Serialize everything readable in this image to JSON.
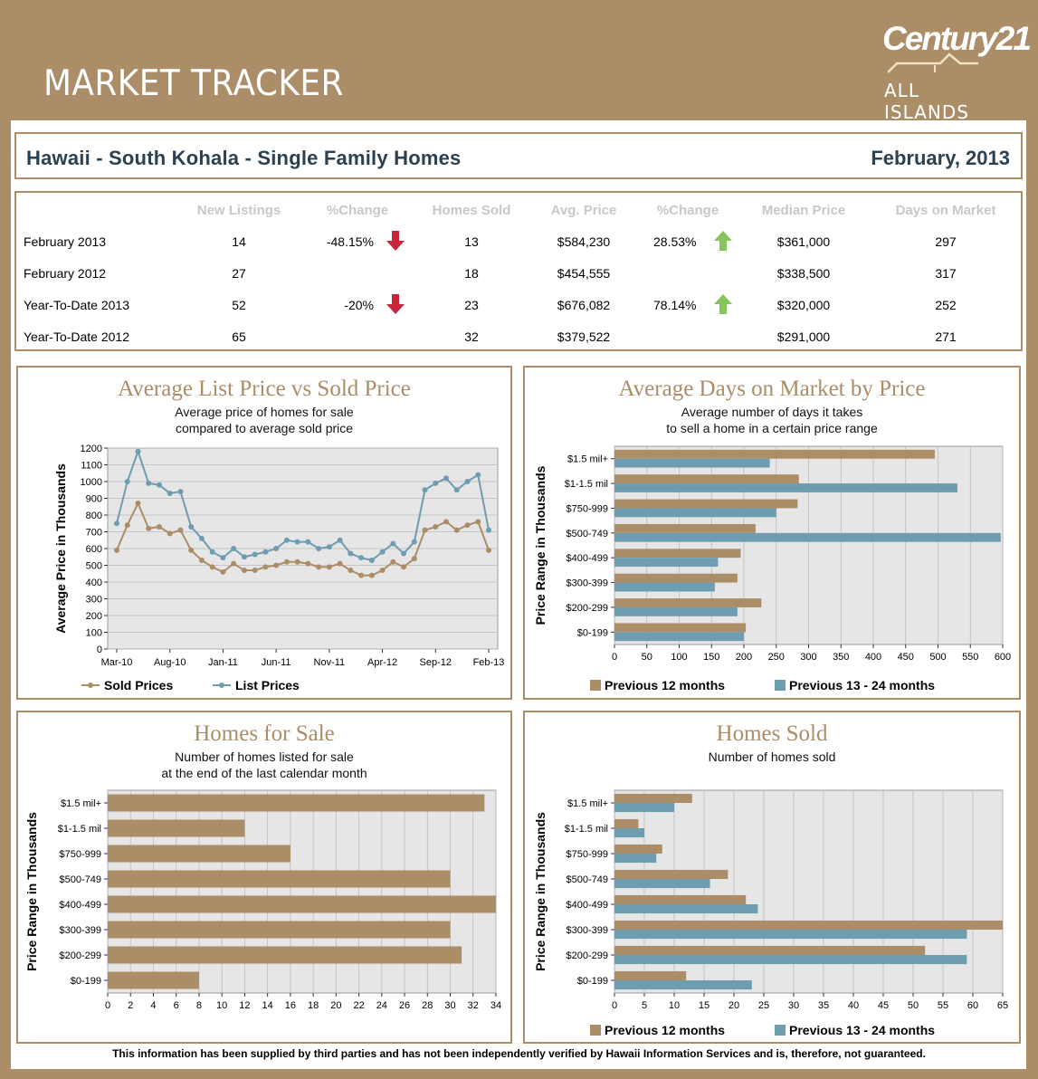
{
  "header": {
    "title": "MARKET TRACKER",
    "logo_main": "Century21",
    "logo_sub": "ALL ISLANDS"
  },
  "titlebar": {
    "region": "Hawaii - South Kohala - Single Family Homes",
    "period": "February, 2013"
  },
  "stats": {
    "headers": [
      "New Listings",
      "%Change",
      "Homes Sold",
      "Avg. Price",
      "%Change",
      "Median Price",
      "Days on Market"
    ],
    "rows": [
      {
        "label": "February 2013",
        "new_listings": "14",
        "pct1": "-48.15%",
        "pct1_dir": "down",
        "sold": "13",
        "avg": "$584,230",
        "pct2": "28.53%",
        "pct2_dir": "up",
        "median": "$361,000",
        "dom": "297"
      },
      {
        "label": "February 2012",
        "new_listings": "27",
        "pct1": "",
        "pct1_dir": "",
        "sold": "18",
        "avg": "$454,555",
        "pct2": "",
        "pct2_dir": "",
        "median": "$338,500",
        "dom": "317"
      },
      {
        "label": "Year-To-Date 2013",
        "new_listings": "52",
        "pct1": "-20%",
        "pct1_dir": "down",
        "sold": "23",
        "avg": "$676,082",
        "pct2": "78.14%",
        "pct2_dir": "up",
        "median": "$320,000",
        "dom": "252"
      },
      {
        "label": "Year-To-Date 2012",
        "new_listings": "65",
        "pct1": "",
        "pct1_dir": "",
        "sold": "32",
        "avg": "$379,522",
        "pct2": "",
        "pct2_dir": "",
        "median": "$291,000",
        "dom": "271"
      }
    ]
  },
  "colors": {
    "brand": "#ab8d67",
    "sold": "#ab8d67",
    "list": "#6e9cb0",
    "blue_bar": "#6e9cb0",
    "plot_bg": "#e6e6e6",
    "up": "#86c45c",
    "down": "#c8253c"
  },
  "chart_data": [
    {
      "type": "line",
      "title": "Average List Price vs Sold Price",
      "subtitle": [
        "Average price of homes for sale",
        "compared to average sold price"
      ],
      "ylabel": "Average Price in Thousands",
      "ylim": [
        0,
        1200
      ],
      "yticks": [
        0,
        100,
        200,
        300,
        400,
        500,
        600,
        700,
        800,
        900,
        1000,
        1100,
        1200
      ],
      "xtick_labels": [
        "Mar-10",
        "Aug-10",
        "Jan-11",
        "Jun-11",
        "Nov-11",
        "Apr-12",
        "Sep-12",
        "Feb-13"
      ],
      "series": [
        {
          "name": "Sold Prices",
          "values": [
            590,
            740,
            870,
            720,
            730,
            690,
            710,
            590,
            530,
            490,
            460,
            510,
            470,
            470,
            490,
            500,
            520,
            520,
            510,
            490,
            490,
            510,
            470,
            440,
            440,
            470,
            520,
            490,
            540,
            710,
            730,
            760,
            710,
            740,
            760,
            590
          ]
        },
        {
          "name": "List Prices",
          "values": [
            750,
            1000,
            1180,
            990,
            980,
            930,
            940,
            730,
            660,
            580,
            545,
            600,
            550,
            565,
            580,
            600,
            650,
            640,
            640,
            600,
            610,
            650,
            570,
            545,
            530,
            580,
            630,
            570,
            640,
            950,
            990,
            1020,
            950,
            1000,
            1040,
            710
          ]
        }
      ],
      "legend": "bottom"
    },
    {
      "type": "bar",
      "orientation": "horizontal",
      "title": "Average Days on Market by Price",
      "subtitle": [
        "Average number of days it takes",
        "to sell a home in a certain price range"
      ],
      "ylabel": "Price Range in Thousands",
      "categories": [
        "$1.5 mil+",
        "$1-1.5 mil",
        "$750-999",
        "$500-749",
        "$400-499",
        "$300-399",
        "$200-299",
        "$0-199"
      ],
      "xlim": [
        0,
        600
      ],
      "xticks": [
        0,
        50,
        100,
        150,
        200,
        250,
        300,
        350,
        400,
        450,
        500,
        550,
        600
      ],
      "series": [
        {
          "name": "Previous 12 months",
          "values": [
            495,
            285,
            283,
            218,
            195,
            190,
            227,
            203
          ]
        },
        {
          "name": "Previous 13 - 24 months",
          "values": [
            240,
            530,
            250,
            597,
            160,
            155,
            190,
            200
          ]
        }
      ],
      "legend": "bottom"
    },
    {
      "type": "bar",
      "orientation": "horizontal",
      "title": "Homes for Sale",
      "subtitle": [
        "Number of homes listed for sale",
        "at the end of the last calendar month"
      ],
      "ylabel": "Price Range in Thousands",
      "categories": [
        "$1.5 mil+",
        "$1-1.5 mil",
        "$750-999",
        "$500-749",
        "$400-499",
        "$300-399",
        "$200-299",
        "$0-199"
      ],
      "xlim": [
        0,
        34
      ],
      "xticks": [
        0,
        2,
        4,
        6,
        8,
        10,
        12,
        14,
        16,
        18,
        20,
        22,
        24,
        26,
        28,
        30,
        32,
        34
      ],
      "series": [
        {
          "values": [
            33,
            12,
            16,
            30,
            34,
            30,
            31,
            8
          ]
        }
      ]
    },
    {
      "type": "bar",
      "orientation": "horizontal",
      "title": "Homes Sold",
      "subtitle": [
        "Number of homes sold"
      ],
      "ylabel": "Price Range in Thousands",
      "categories": [
        "$1.5 mil+",
        "$1-1.5 mil",
        "$750-999",
        "$500-749",
        "$400-499",
        "$300-399",
        "$200-299",
        "$0-199"
      ],
      "xlim": [
        0,
        65
      ],
      "xticks": [
        0,
        5,
        10,
        15,
        20,
        25,
        30,
        35,
        40,
        45,
        50,
        55,
        60,
        65
      ],
      "series": [
        {
          "name": "Previous 12 months",
          "values": [
            13,
            4,
            8,
            19,
            22,
            65,
            52,
            12
          ]
        },
        {
          "name": "Previous 13 - 24 months",
          "values": [
            10,
            5,
            7,
            16,
            24,
            59,
            59,
            23
          ]
        }
      ],
      "legend": "bottom"
    }
  ],
  "footer": "This information has been supplied by third parties and has not been independently verified by Hawaii Information Services and is, therefore, not guaranteed."
}
